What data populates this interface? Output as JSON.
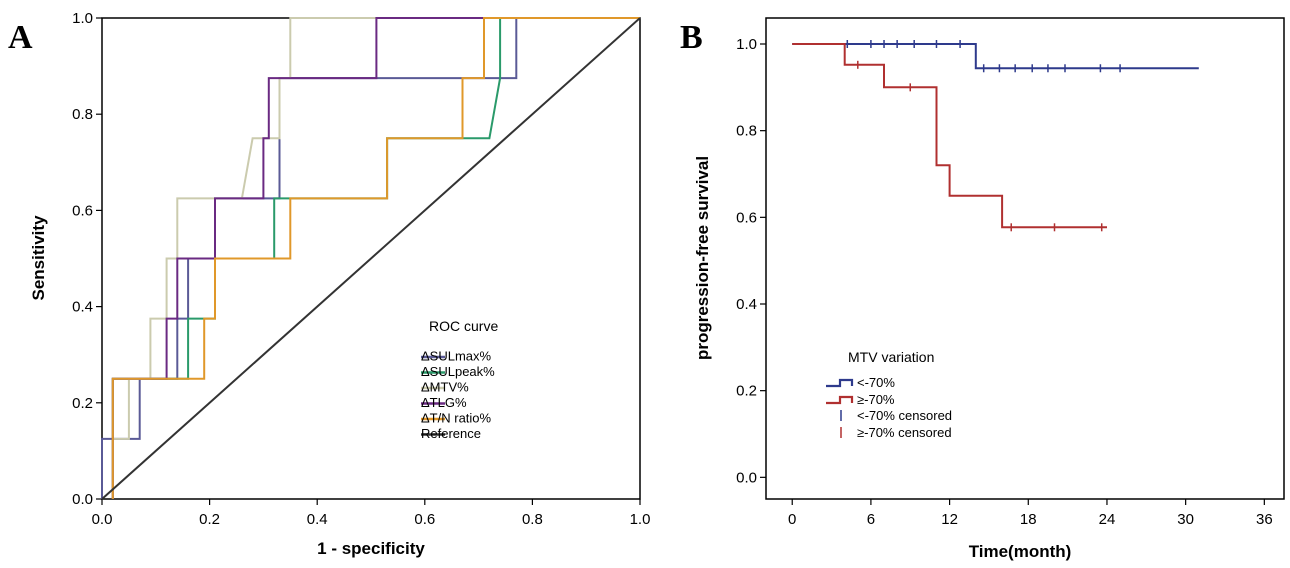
{
  "chart_data": [
    {
      "panel": "A",
      "type": "line",
      "xlabel": "1 - specificity",
      "ylabel": "Sensitivity",
      "xlim": [
        0,
        1
      ],
      "ylim": [
        0,
        1
      ],
      "x_ticks": [
        "0.0",
        "0.2",
        "0.4",
        "0.6",
        "0.8",
        "1.0"
      ],
      "y_ticks": [
        "0.0",
        "0.2",
        "0.4",
        "0.6",
        "0.8",
        "1.0"
      ],
      "legend": {
        "title": "ROC curve",
        "position": "lower-right"
      },
      "series": [
        {
          "name": "ΔSULmax%",
          "color": "#5a5a96",
          "points": [
            [
              0,
              0
            ],
            [
              0,
              0.125
            ],
            [
              0.07,
              0.125
            ],
            [
              0.07,
              0.25
            ],
            [
              0.14,
              0.25
            ],
            [
              0.14,
              0.375
            ],
            [
              0.16,
              0.375
            ],
            [
              0.16,
              0.5
            ],
            [
              0.21,
              0.5
            ],
            [
              0.21,
              0.625
            ],
            [
              0.33,
              0.625
            ],
            [
              0.33,
              0.875
            ],
            [
              0.6,
              0.875
            ],
            [
              0.6,
              0.875
            ],
            [
              0.72,
              0.875
            ],
            [
              0.72,
              0.875
            ],
            [
              0.75,
              0.875
            ],
            [
              0.77,
              0.875
            ],
            [
              0.77,
              1.0
            ],
            [
              1.0,
              1.0
            ]
          ]
        },
        {
          "name": "ΔSULpeak%",
          "color": "#2a9a6a",
          "points": [
            [
              0.02,
              0
            ],
            [
              0.02,
              0.25
            ],
            [
              0.16,
              0.25
            ],
            [
              0.16,
              0.375
            ],
            [
              0.21,
              0.375
            ],
            [
              0.21,
              0.5
            ],
            [
              0.32,
              0.5
            ],
            [
              0.32,
              0.625
            ],
            [
              0.53,
              0.625
            ],
            [
              0.53,
              0.75
            ],
            [
              0.72,
              0.75
            ],
            [
              0.74,
              0.875
            ],
            [
              0.74,
              1.0
            ],
            [
              1.0,
              1.0
            ]
          ]
        },
        {
          "name": "ΔMTV%",
          "color": "#cbcbae",
          "points": [
            [
              0.02,
              0
            ],
            [
              0.02,
              0.125
            ],
            [
              0.05,
              0.125
            ],
            [
              0.05,
              0.25
            ],
            [
              0.09,
              0.25
            ],
            [
              0.09,
              0.375
            ],
            [
              0.12,
              0.375
            ],
            [
              0.12,
              0.5
            ],
            [
              0.14,
              0.5
            ],
            [
              0.14,
              0.625
            ],
            [
              0.26,
              0.625
            ],
            [
              0.28,
              0.75
            ],
            [
              0.33,
              0.75
            ],
            [
              0.33,
              0.875
            ],
            [
              0.35,
              0.875
            ],
            [
              0.35,
              1.0
            ],
            [
              1.0,
              1.0
            ]
          ]
        },
        {
          "name": "ΔTLG%",
          "color": "#6a2a82",
          "points": [
            [
              0.02,
              0
            ],
            [
              0.02,
              0.25
            ],
            [
              0.12,
              0.25
            ],
            [
              0.12,
              0.375
            ],
            [
              0.14,
              0.375
            ],
            [
              0.14,
              0.5
            ],
            [
              0.21,
              0.5
            ],
            [
              0.21,
              0.625
            ],
            [
              0.3,
              0.625
            ],
            [
              0.3,
              0.75
            ],
            [
              0.31,
              0.75
            ],
            [
              0.31,
              0.875
            ],
            [
              0.51,
              0.875
            ],
            [
              0.51,
              1.0
            ],
            [
              1.0,
              1.0
            ]
          ]
        },
        {
          "name": "ΔT/N ratio%",
          "color": "#e0982a",
          "points": [
            [
              0.02,
              0
            ],
            [
              0.02,
              0.25
            ],
            [
              0.19,
              0.25
            ],
            [
              0.19,
              0.375
            ],
            [
              0.21,
              0.375
            ],
            [
              0.21,
              0.5
            ],
            [
              0.35,
              0.5
            ],
            [
              0.35,
              0.625
            ],
            [
              0.53,
              0.625
            ],
            [
              0.53,
              0.75
            ],
            [
              0.67,
              0.75
            ],
            [
              0.67,
              0.875
            ],
            [
              0.71,
              0.875
            ],
            [
              0.71,
              1.0
            ],
            [
              1.0,
              1.0
            ]
          ]
        },
        {
          "name": "Reference",
          "color": "#333333",
          "points": [
            [
              0,
              0
            ],
            [
              1,
              1
            ]
          ]
        }
      ]
    },
    {
      "panel": "B",
      "type": "line",
      "xlabel": "Time(month)",
      "ylabel": "progression-free survival",
      "xlim": [
        -2,
        37.5
      ],
      "ylim": [
        -0.05,
        1.06
      ],
      "x_ticks": [
        "0",
        "6",
        "12",
        "18",
        "24",
        "30",
        "36"
      ],
      "y_ticks": [
        "0.0",
        "0.2",
        "0.4",
        "0.6",
        "0.8",
        "1.0"
      ],
      "legend": {
        "title": "MTV variation",
        "position": "lower-left"
      },
      "series": [
        {
          "name": "<-70%",
          "color": "#2e3a8c",
          "steps": [
            [
              0,
              1.0
            ],
            [
              14,
              0.944
            ],
            [
              31,
              0.944
            ]
          ],
          "censored": [
            4.2,
            6,
            7,
            8,
            9.3,
            11,
            12.8,
            14.6,
            15.8,
            17,
            18.3,
            19.5,
            20.8,
            23.5,
            25
          ]
        },
        {
          "name": "≥-70%",
          "color": "#b03030",
          "steps": [
            [
              0,
              1.0
            ],
            [
              4,
              0.952
            ],
            [
              7,
              0.9
            ],
            [
              11,
              0.72
            ],
            [
              12,
              0.65
            ],
            [
              16,
              0.577
            ],
            [
              24,
              0.577
            ]
          ],
          "censored": [
            5,
            9,
            16.7,
            20,
            23.6
          ]
        }
      ],
      "legend_entries": [
        "<-70%",
        "≥-70%",
        "<-70% censored",
        "≥-70% censored"
      ]
    }
  ]
}
